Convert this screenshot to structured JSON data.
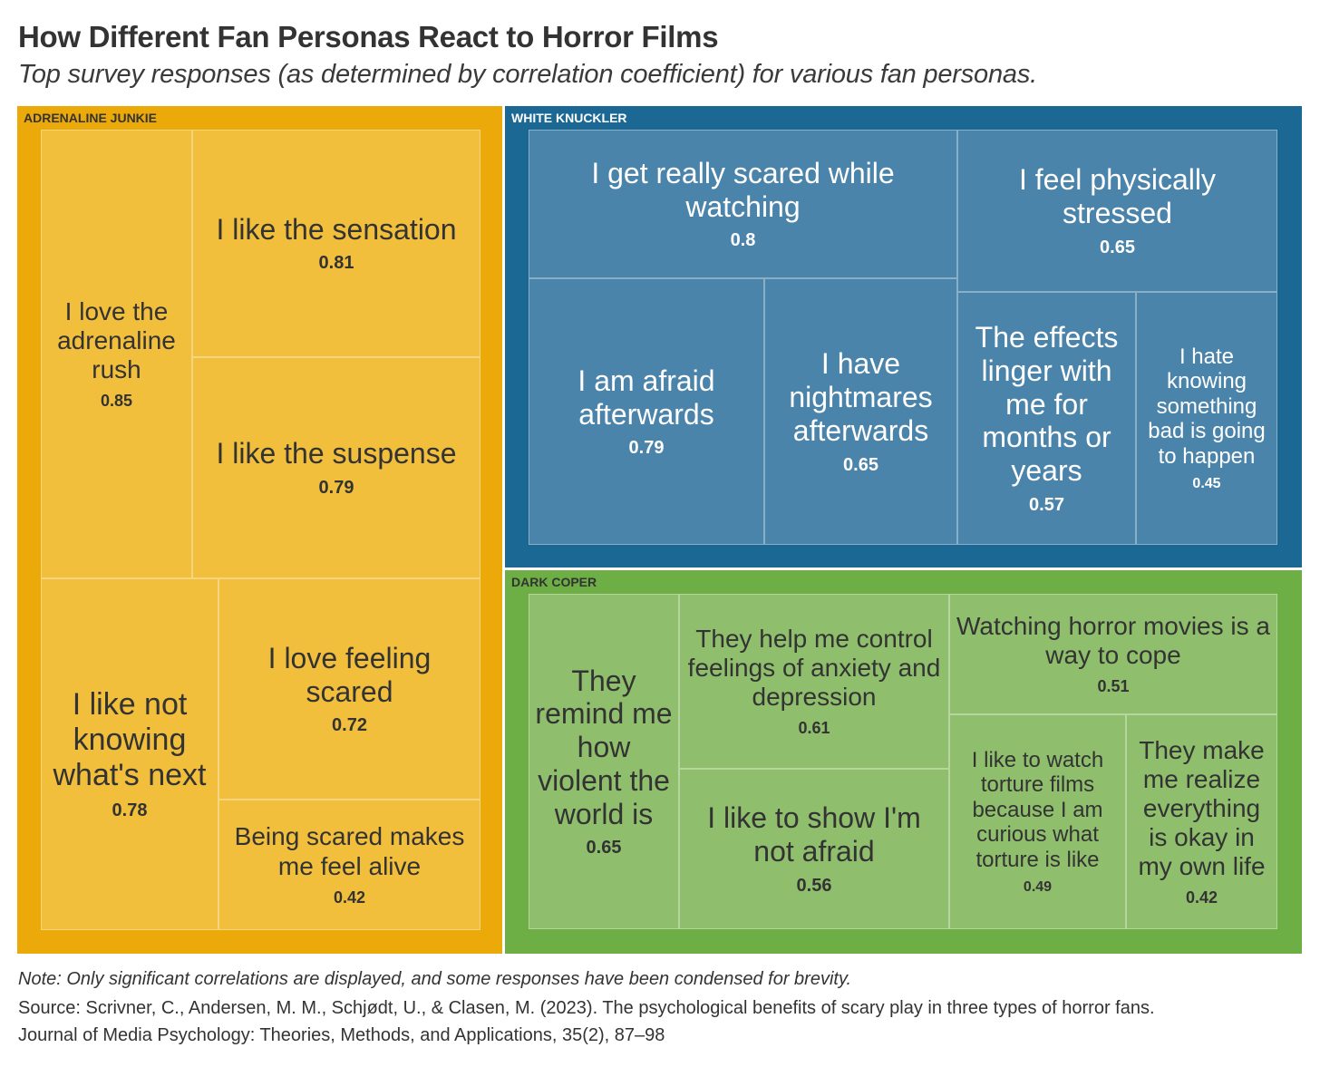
{
  "title": "How Different Fan Personas React to Horror Films",
  "subtitle": "Top survey responses (as determined by correlation coefficient) for various fan personas.",
  "note": "Note: Only significant correlations are displayed, and some responses have been condensed for brevity.",
  "source_line1": "Source: Scrivner, C., Andersen, M. M., Schjødt, U., & Clasen, M. (2023). The psychological benefits of scary play in three types of horror fans.",
  "source_line2": "Journal of Media Psychology: Theories, Methods, and Applications, 35(2), 87–98",
  "colors": {
    "adrenaline_outer": "#ECAA0A",
    "adrenaline_tile": "#F2BF3C",
    "adrenaline_text": "#333333",
    "white_knuckler_outer": "#1C6895",
    "white_knuckler_tile": "#4B84AA",
    "white_knuckler_text": "#FFFFFF",
    "dark_coper_outer": "#6DAE45",
    "dark_coper_tile": "#8FBF6C",
    "dark_coper_text": "#333333"
  },
  "chart_data": {
    "type": "treemap",
    "groups": [
      {
        "name": "ADRENALINE JUNKIE",
        "items": [
          {
            "label": "I love the adrenaline rush",
            "value": 0.85
          },
          {
            "label": "I like the sensation",
            "value": 0.81
          },
          {
            "label": "I like the suspense",
            "value": 0.79
          },
          {
            "label": "I like not knowing what's next",
            "value": 0.78
          },
          {
            "label": "I love feeling scared",
            "value": 0.72
          },
          {
            "label": "Being scared makes me feel alive",
            "value": 0.42
          }
        ]
      },
      {
        "name": "WHITE KNUCKLER",
        "items": [
          {
            "label": "I get really scared while watching",
            "value": 0.8
          },
          {
            "label": "I feel physically stressed",
            "value": 0.65
          },
          {
            "label": "I am afraid afterwards",
            "value": 0.79
          },
          {
            "label": "I have nightmares afterwards",
            "value": 0.65
          },
          {
            "label": "The effects linger with me for months or years",
            "value": 0.57
          },
          {
            "label": "I hate knowing something bad is going to happen",
            "value": 0.45
          }
        ]
      },
      {
        "name": "DARK COPER",
        "items": [
          {
            "label": "They remind me how violent the world is",
            "value": 0.65
          },
          {
            "label": "They help me control feelings of anxiety and depression",
            "value": 0.61
          },
          {
            "label": "Watching horror movies is a way to cope",
            "value": 0.51
          },
          {
            "label": "I like to show I'm not afraid",
            "value": 0.56
          },
          {
            "label": "I like to watch torture films because I am curious what torture is like",
            "value": 0.49
          },
          {
            "label": "They make me realize everything is okay in my own life",
            "value": 0.42
          }
        ]
      }
    ]
  }
}
